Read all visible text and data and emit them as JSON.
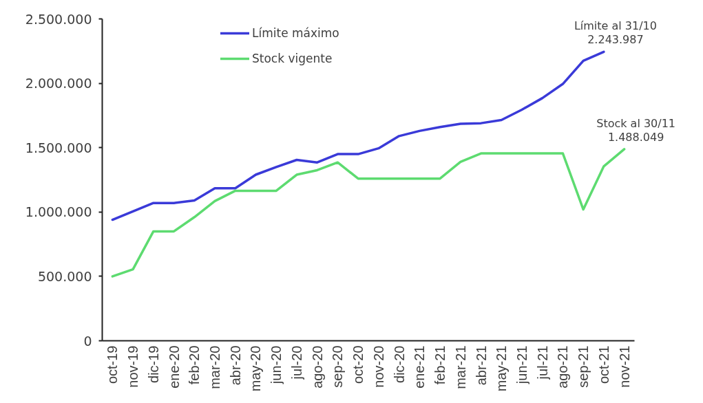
{
  "chart_data": {
    "type": "line",
    "categories": [
      "oct-19",
      "nov-19",
      "dic-19",
      "ene-20",
      "feb-20",
      "mar-20",
      "abr-20",
      "may-20",
      "jun-20",
      "jul-20",
      "ago-20",
      "sep-20",
      "oct-20",
      "nov-20",
      "dic-20",
      "ene-21",
      "feb-21",
      "mar-21",
      "abr-21",
      "may-21",
      "jun-21",
      "jul-21",
      "ago-21",
      "sep-21",
      "oct-21",
      "nov-21"
    ],
    "series": [
      {
        "name": "Límite máximo",
        "color": "#3a3ad8",
        "values": [
          940000,
          1005000,
          1070000,
          1070000,
          1090000,
          1185000,
          1185000,
          1290000,
          1350000,
          1405000,
          1385000,
          1450000,
          1450000,
          1495000,
          1590000,
          1630000,
          1660000,
          1685000,
          1690000,
          1715000,
          1795000,
          1885000,
          1995000,
          2175000,
          2243987,
          null
        ]
      },
      {
        "name": "Stock vigente",
        "color": "#5ddb70",
        "values": [
          500000,
          555000,
          850000,
          850000,
          960000,
          1085000,
          1165000,
          1165000,
          1165000,
          1290000,
          1325000,
          1385000,
          1260000,
          1260000,
          1260000,
          1260000,
          1260000,
          1390000,
          1455000,
          1455000,
          1455000,
          1455000,
          1455000,
          1020000,
          1355000,
          1488049
        ]
      }
    ],
    "ylim": [
      0,
      2500000
    ],
    "yticks": [
      0,
      {
        "value": 500000,
        "label": "500.000"
      },
      {
        "value": 1000000,
        "label": "1.000.000"
      },
      {
        "value": 1500000,
        "label": "1.500.000"
      },
      {
        "value": 2000000,
        "label": "2.000.000"
      },
      {
        "value": 2500000,
        "label": "2.500.000"
      }
    ],
    "annotations": [
      {
        "text": "Límite al 31/10\n2.243.987",
        "x": "oct-21",
        "y": 2243987
      },
      {
        "text": "Stock al 30/11\n1.488.049",
        "x": "nov-21",
        "y": 1488049
      }
    ],
    "legend": "top left",
    "grid": false,
    "marker": "none",
    "line_style": "solid"
  }
}
